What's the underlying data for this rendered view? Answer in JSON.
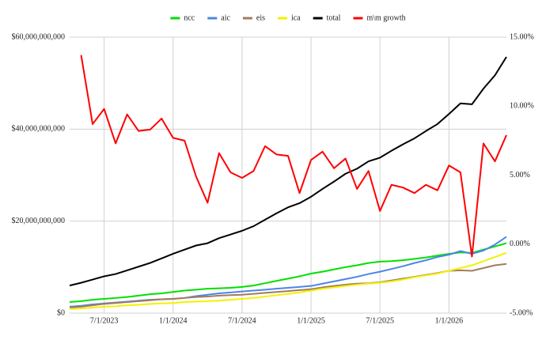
{
  "chart_data": {
    "type": "line",
    "categories": [
      null,
      null,
      null,
      "7/1/2023",
      null,
      null,
      null,
      null,
      null,
      "1/1/2024",
      null,
      null,
      null,
      null,
      null,
      "7/1/2024",
      null,
      null,
      null,
      null,
      null,
      "1/1/2025",
      null,
      null,
      null,
      null,
      null,
      "7/1/2025",
      null,
      null,
      null,
      null,
      null,
      "1/1/2026",
      null,
      null,
      null,
      null,
      null
    ],
    "series": [
      {
        "name": "ncc",
        "color": "#00e000",
        "values": [
          2400000000,
          2600000000,
          2900000000,
          3100000000,
          3300000000,
          3500000000,
          3800000000,
          4100000000,
          4300000000,
          4600000000,
          4900000000,
          5100000000,
          5300000000,
          5400000000,
          5500000000,
          5700000000,
          6000000000,
          6500000000,
          7000000000,
          7500000000,
          8000000000,
          8600000000,
          9000000000,
          9500000000,
          10000000000,
          10400000000,
          10900000000,
          11200000000,
          11300000000,
          11500000000,
          11800000000,
          12100000000,
          12500000000,
          12900000000,
          13200000000,
          13100000000,
          13800000000,
          14500000000,
          15200000000
        ]
      },
      {
        "name": "aic",
        "color": "#4a86e8",
        "values": [
          1400000000,
          1600000000,
          1900000000,
          2100000000,
          2300000000,
          2500000000,
          2700000000,
          2900000000,
          3000000000,
          3100000000,
          3300000000,
          3700000000,
          4000000000,
          4300000000,
          4500000000,
          4700000000,
          4900000000,
          5100000000,
          5300000000,
          5500000000,
          5700000000,
          5900000000,
          6400000000,
          6900000000,
          7400000000,
          7900000000,
          8500000000,
          9000000000,
          9600000000,
          10200000000,
          10900000000,
          11500000000,
          12200000000,
          12700000000,
          13500000000,
          12900000000,
          13600000000,
          14900000000,
          16600000000
        ]
      },
      {
        "name": "eis",
        "color": "#a47a5c",
        "values": [
          1200000000,
          1400000000,
          1700000000,
          2000000000,
          2200000000,
          2400000000,
          2600000000,
          2800000000,
          3000000000,
          3100000000,
          3300000000,
          3500000000,
          3600000000,
          3800000000,
          3900000000,
          4000000000,
          4200000000,
          4400000000,
          4600000000,
          4800000000,
          5000000000,
          5200000000,
          5600000000,
          5900000000,
          6200000000,
          6400000000,
          6500000000,
          6700000000,
          7100000000,
          7500000000,
          7900000000,
          8300000000,
          8700000000,
          9200000000,
          9300000000,
          9200000000,
          9800000000,
          10400000000,
          10700000000
        ]
      },
      {
        "name": "ica",
        "color": "#f2f200",
        "values": [
          900000000,
          1000000000,
          1200000000,
          1400000000,
          1500000000,
          1700000000,
          1800000000,
          2000000000,
          2100000000,
          2200000000,
          2400000000,
          2500000000,
          2600000000,
          2700000000,
          2900000000,
          3100000000,
          3300000000,
          3600000000,
          3900000000,
          4200000000,
          4500000000,
          4900000000,
          5300000000,
          5600000000,
          5900000000,
          6200000000,
          6400000000,
          6600000000,
          6900000000,
          7300000000,
          7800000000,
          8200000000,
          8600000000,
          9200000000,
          9800000000,
          10400000000,
          11300000000,
          12200000000,
          13100000000
        ]
      },
      {
        "name": "total",
        "color": "#000000",
        "values": [
          6000000000,
          6600000000,
          7300000000,
          8000000000,
          8500000000,
          9300000000,
          10100000000,
          10900000000,
          11900000000,
          12900000000,
          13800000000,
          14700000000,
          15200000000,
          16300000000,
          17100000000,
          17900000000,
          18900000000,
          20300000000,
          21700000000,
          23000000000,
          23900000000,
          25300000000,
          27000000000,
          28600000000,
          30300000000,
          31400000000,
          33000000000,
          33800000000,
          35300000000,
          36700000000,
          38000000000,
          39600000000,
          41100000000,
          43300000000,
          45600000000,
          45400000000,
          48800000000,
          51700000000,
          55700000000
        ]
      },
      {
        "name": "m\\m growth",
        "color": "#ff0000",
        "axis": "y2",
        "values": [
          null,
          13.7,
          8.7,
          9.8,
          7.3,
          9.4,
          8.2,
          8.3,
          9.1,
          7.7,
          7.5,
          4.9,
          3.0,
          6.6,
          5.2,
          4.8,
          5.3,
          7.1,
          6.5,
          6.4,
          3.7,
          6.1,
          6.7,
          5.5,
          6.2,
          4.0,
          5.3,
          2.4,
          4.3,
          4.1,
          3.7,
          4.3,
          3.9,
          5.7,
          5.2,
          -0.9,
          7.3,
          6.0,
          7.9
        ]
      }
    ],
    "ylim": [
      0,
      60000000000
    ],
    "yticks": [
      {
        "value": 0,
        "label": "$0"
      },
      {
        "value": 20000000000,
        "label": "$20,000,000,000"
      },
      {
        "value": 40000000000,
        "label": "$40,000,000,000"
      },
      {
        "value": 60000000000,
        "label": "$60,000,000,000"
      }
    ],
    "y2lim": [
      -5,
      15
    ],
    "y2ticks": [
      {
        "value": -5,
        "label": "-5.00%"
      },
      {
        "value": 0,
        "label": "0.00%"
      },
      {
        "value": 5,
        "label": "5.00%"
      },
      {
        "value": 10,
        "label": "10.00%"
      },
      {
        "value": 15,
        "label": "15.00%"
      }
    ],
    "grid": true,
    "legend": "top"
  }
}
